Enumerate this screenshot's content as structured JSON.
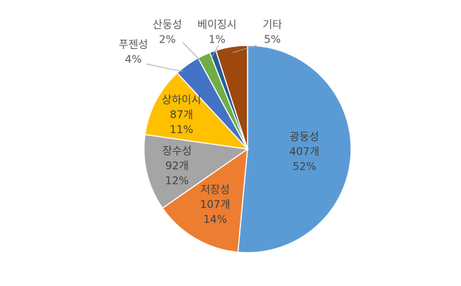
{
  "chart_data": {
    "type": "pie",
    "title": "",
    "legend": "none",
    "slices": [
      {
        "name": "광둥성",
        "count": "407개",
        "percent": "52%",
        "value": 52,
        "color": "#5b9bd5"
      },
      {
        "name": "저장성",
        "count": "107개",
        "percent": "14%",
        "value": 14,
        "color": "#ed7d31"
      },
      {
        "name": "장수성",
        "count": "92개",
        "percent": "12%",
        "value": 12,
        "color": "#a5a5a5"
      },
      {
        "name": "상하이시",
        "count": "87개",
        "percent": "11%",
        "value": 11,
        "color": "#ffc000"
      },
      {
        "name": "푸젠성",
        "count": "",
        "percent": "4%",
        "value": 4,
        "color": "#4472c4"
      },
      {
        "name": "산둥성",
        "count": "",
        "percent": "2%",
        "value": 2,
        "color": "#70ad47"
      },
      {
        "name": "베이징시",
        "count": "",
        "percent": "1%",
        "value": 1,
        "color": "#255e91"
      },
      {
        "name": "기타",
        "count": "",
        "percent": "5%",
        "value": 5,
        "color": "#9e480e"
      }
    ]
  }
}
